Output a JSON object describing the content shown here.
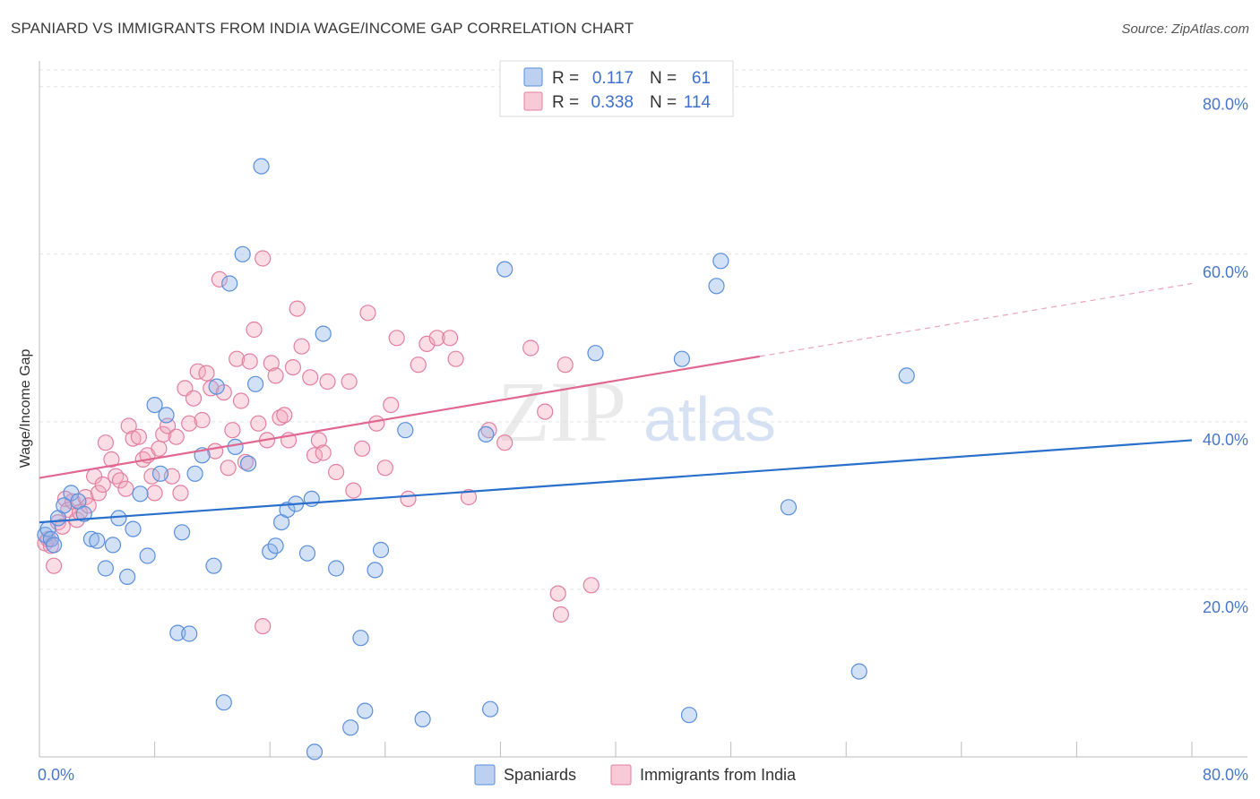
{
  "title": "SPANIARD VS IMMIGRANTS FROM INDIA WAGE/INCOME GAP CORRELATION CHART",
  "source": "Source: ZipAtlas.com",
  "watermark": {
    "zip": "ZIP",
    "atlas": "atlas"
  },
  "chart_data": {
    "type": "scatter",
    "title": "SPANIARD VS IMMIGRANTS FROM INDIA WAGE/INCOME GAP CORRELATION CHART",
    "xlabel": "",
    "ylabel": "Wage/Income Gap",
    "xlim": [
      0,
      80
    ],
    "ylim": [
      0,
      82
    ],
    "x_tick_labels": [
      {
        "value": 0,
        "label": "0.0%"
      },
      {
        "value": 80,
        "label": "80.0%"
      }
    ],
    "y_ticks": [
      {
        "value": 20,
        "label": "20.0%"
      },
      {
        "value": 40,
        "label": "40.0%"
      },
      {
        "value": 60,
        "label": "60.0%"
      },
      {
        "value": 80,
        "label": "80.0%"
      }
    ],
    "legend": {
      "r_label": "R =",
      "n_label": "N =",
      "entries": [
        {
          "r": "0.117",
          "n": "61",
          "color": "#8fb3e8"
        },
        {
          "r": "0.338",
          "n": "114",
          "color": "#f4a6be"
        }
      ]
    },
    "series": [
      {
        "name": "Spaniards",
        "color": "#8fb3e8",
        "line_color": "#2a6fcc",
        "trend": {
          "x0": 0,
          "y0": 28.0,
          "x1": 80,
          "y1": 37.8,
          "solid_to": 80
        },
        "points": [
          [
            0.4,
            26.5
          ],
          [
            0.6,
            27.2
          ],
          [
            0.8,
            26.0
          ],
          [
            1.0,
            25.3
          ],
          [
            1.3,
            28.5
          ],
          [
            1.7,
            30.0
          ],
          [
            2.2,
            31.5
          ],
          [
            2.7,
            30.5
          ],
          [
            3.1,
            29.0
          ],
          [
            3.6,
            26.0
          ],
          [
            4.0,
            25.8
          ],
          [
            4.6,
            22.5
          ],
          [
            5.1,
            25.3
          ],
          [
            5.5,
            28.5
          ],
          [
            6.1,
            21.5
          ],
          [
            6.5,
            27.2
          ],
          [
            7.0,
            31.4
          ],
          [
            7.5,
            24.0
          ],
          [
            8.0,
            42.0
          ],
          [
            8.4,
            33.8
          ],
          [
            8.8,
            40.8
          ],
          [
            9.6,
            14.8
          ],
          [
            9.9,
            26.8
          ],
          [
            10.4,
            14.7
          ],
          [
            10.8,
            33.8
          ],
          [
            11.3,
            36.0
          ],
          [
            12.1,
            22.8
          ],
          [
            12.3,
            44.2
          ],
          [
            12.8,
            6.5
          ],
          [
            13.2,
            56.5
          ],
          [
            13.6,
            37.0
          ],
          [
            14.1,
            60.0
          ],
          [
            14.5,
            35.0
          ],
          [
            15.0,
            44.5
          ],
          [
            15.4,
            70.5
          ],
          [
            16.0,
            24.5
          ],
          [
            16.4,
            25.2
          ],
          [
            16.8,
            28.0
          ],
          [
            17.2,
            29.5
          ],
          [
            17.8,
            30.2
          ],
          [
            18.6,
            24.3
          ],
          [
            18.9,
            30.8
          ],
          [
            19.1,
            0.6
          ],
          [
            19.7,
            50.5
          ],
          [
            20.6,
            22.5
          ],
          [
            21.6,
            3.5
          ],
          [
            22.3,
            14.2
          ],
          [
            22.6,
            5.5
          ],
          [
            23.3,
            22.3
          ],
          [
            23.7,
            24.7
          ],
          [
            25.4,
            39.0
          ],
          [
            26.6,
            4.5
          ],
          [
            31.0,
            38.5
          ],
          [
            31.3,
            5.7
          ],
          [
            32.3,
            58.2
          ],
          [
            38.6,
            48.2
          ],
          [
            44.6,
            47.5
          ],
          [
            45.1,
            5.0
          ],
          [
            47.0,
            56.2
          ],
          [
            47.3,
            59.2
          ],
          [
            52.0,
            29.8
          ],
          [
            56.9,
            10.2
          ],
          [
            60.2,
            45.5
          ]
        ]
      },
      {
        "name": "Immigrants from India",
        "color": "#f4a6be",
        "line_color": "#e0678f",
        "trend": {
          "x0": 0,
          "y0": 33.3,
          "x1": 80,
          "y1": 56.5,
          "solid_to": 50
        },
        "points": [
          [
            0.4,
            25.5
          ],
          [
            0.6,
            26.0
          ],
          [
            0.8,
            25.2
          ],
          [
            1.0,
            22.8
          ],
          [
            1.3,
            28.0
          ],
          [
            1.6,
            27.5
          ],
          [
            1.8,
            30.8
          ],
          [
            2.0,
            29.5
          ],
          [
            2.3,
            30.5
          ],
          [
            2.6,
            28.3
          ],
          [
            2.8,
            29.2
          ],
          [
            3.2,
            31.0
          ],
          [
            3.4,
            30.0
          ],
          [
            3.8,
            33.5
          ],
          [
            4.1,
            31.5
          ],
          [
            4.4,
            32.5
          ],
          [
            4.6,
            37.5
          ],
          [
            5.0,
            35.5
          ],
          [
            5.3,
            33.5
          ],
          [
            5.6,
            33.0
          ],
          [
            6.0,
            32.0
          ],
          [
            6.2,
            39.5
          ],
          [
            6.5,
            38.0
          ],
          [
            6.9,
            38.2
          ],
          [
            7.2,
            35.5
          ],
          [
            7.5,
            36.0
          ],
          [
            7.8,
            33.5
          ],
          [
            8.0,
            31.5
          ],
          [
            8.3,
            36.8
          ],
          [
            8.6,
            38.5
          ],
          [
            8.9,
            39.5
          ],
          [
            9.2,
            33.5
          ],
          [
            9.5,
            38.2
          ],
          [
            9.8,
            31.5
          ],
          [
            10.1,
            44.0
          ],
          [
            10.4,
            39.8
          ],
          [
            10.7,
            42.8
          ],
          [
            11.0,
            46.0
          ],
          [
            11.3,
            40.2
          ],
          [
            11.6,
            45.8
          ],
          [
            11.9,
            44.0
          ],
          [
            12.2,
            36.5
          ],
          [
            12.5,
            57.0
          ],
          [
            12.8,
            43.5
          ],
          [
            13.1,
            34.5
          ],
          [
            13.4,
            39.0
          ],
          [
            13.7,
            47.5
          ],
          [
            14.0,
            42.5
          ],
          [
            14.3,
            35.2
          ],
          [
            14.6,
            47.2
          ],
          [
            14.9,
            51.0
          ],
          [
            15.2,
            39.8
          ],
          [
            15.5,
            59.5
          ],
          [
            15.8,
            37.8
          ],
          [
            16.1,
            47.0
          ],
          [
            16.4,
            45.5
          ],
          [
            16.7,
            40.5
          ],
          [
            17.0,
            40.8
          ],
          [
            17.3,
            37.8
          ],
          [
            17.6,
            46.5
          ],
          [
            17.9,
            53.5
          ],
          [
            18.2,
            49.0
          ],
          [
            18.8,
            45.3
          ],
          [
            19.1,
            36.0
          ],
          [
            19.4,
            37.8
          ],
          [
            19.7,
            36.3
          ],
          [
            20.0,
            44.8
          ],
          [
            20.6,
            34.0
          ],
          [
            21.5,
            44.8
          ],
          [
            21.8,
            31.8
          ],
          [
            22.4,
            36.8
          ],
          [
            22.8,
            53.0
          ],
          [
            23.4,
            39.8
          ],
          [
            24.0,
            34.5
          ],
          [
            24.4,
            42.0
          ],
          [
            24.8,
            50.0
          ],
          [
            25.6,
            30.8
          ],
          [
            26.3,
            46.8
          ],
          [
            26.9,
            49.3
          ],
          [
            27.6,
            50.0
          ],
          [
            28.5,
            50.0
          ],
          [
            28.9,
            47.5
          ],
          [
            29.8,
            31.0
          ],
          [
            31.2,
            39.0
          ],
          [
            32.3,
            37.5
          ],
          [
            34.1,
            48.8
          ],
          [
            35.1,
            41.2
          ],
          [
            36.0,
            19.5
          ],
          [
            36.5,
            46.8
          ],
          [
            38.3,
            20.5
          ],
          [
            15.5,
            15.6
          ],
          [
            36.2,
            17.0
          ]
        ]
      }
    ]
  },
  "bottom_legend": [
    {
      "label": "Spaniards",
      "color": "#8fb3e8"
    },
    {
      "label": "Immigrants from India",
      "color": "#f4a6be"
    }
  ]
}
